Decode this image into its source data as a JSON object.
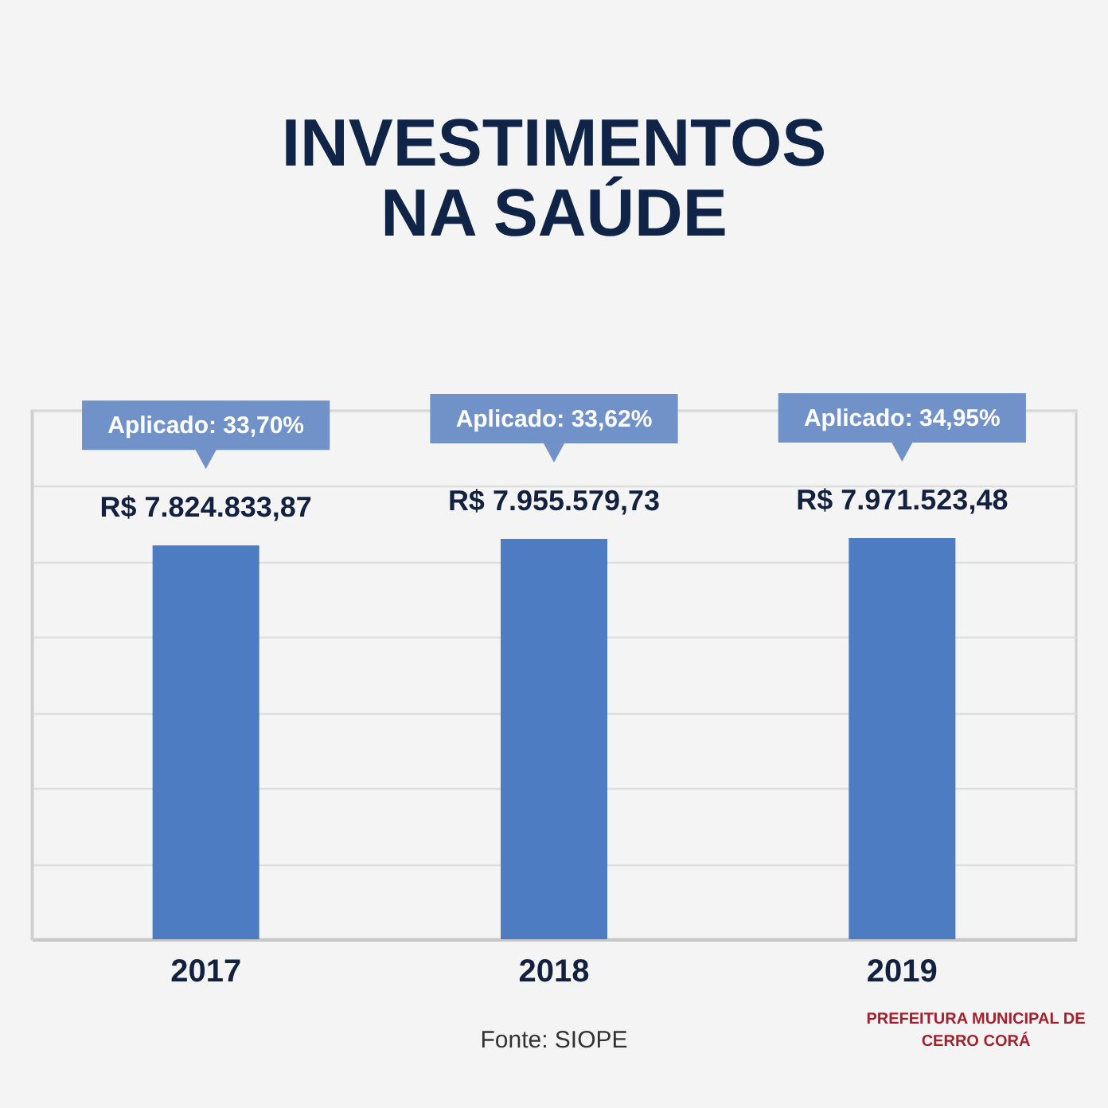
{
  "chart_data": {
    "type": "bar",
    "title": "INVESTIMENTOS NA SAÚDE",
    "categories": [
      "2017",
      "2018",
      "2019"
    ],
    "values": [
      7824833.87,
      7955579.73,
      7971523.48
    ],
    "value_labels": [
      "R$ 7.824.833,87",
      "R$ 7.955.579,73",
      "R$ 7.971.523,48"
    ],
    "color": "#4d7cc3",
    "ylim": [
      0,
      10500000
    ],
    "yticks": [
      {
        "value": 0,
        "label": null
      },
      {
        "value": 1500000,
        "label": null
      },
      {
        "value": 3000000,
        "label": null
      },
      {
        "value": 4500000,
        "label": null
      },
      {
        "value": 6000000,
        "label": null
      },
      {
        "value": 7500000,
        "label": null
      },
      {
        "value": 9000000,
        "label": null
      },
      {
        "value": 10500000,
        "label": null
      }
    ],
    "grid": "y",
    "tick_labels": "x",
    "annotations": [
      "Aplicado: 33,70%",
      "Aplicado: 33,62%",
      "Aplicado: 34,95%",
      "Fonte: SIOPE",
      "PREFEITURA MUNICIPAL DE CERRO CORÁ"
    ]
  }
}
